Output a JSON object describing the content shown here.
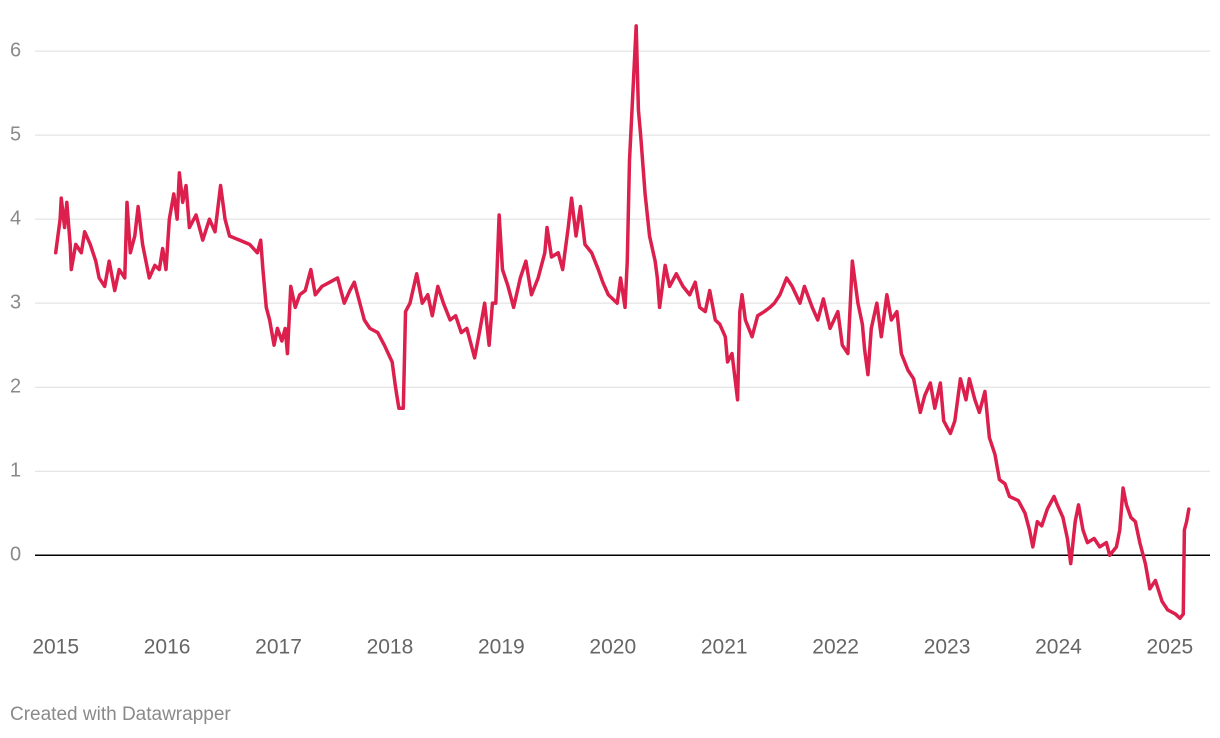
{
  "chart_data": {
    "type": "line",
    "xlim": [
      2014.59,
      2025.36
    ],
    "ylim": [
      -0.83,
      6.37
    ],
    "xticks": [
      2015,
      2016,
      2017,
      2018,
      2019,
      2020,
      2021,
      2022,
      2023,
      2024,
      2025
    ],
    "yticks": [
      0,
      1,
      2,
      3,
      4,
      5,
      6
    ],
    "grid": true,
    "series": [
      {
        "color": "#dc1f4c",
        "x": [
          2015.0,
          2015.04,
          2015.05,
          2015.08,
          2015.1,
          2015.13,
          2015.14,
          2015.18,
          2015.23,
          2015.26,
          2015.31,
          2015.36,
          2015.39,
          2015.44,
          2015.48,
          2015.53,
          2015.57,
          2015.62,
          2015.64,
          2015.67,
          2015.71,
          2015.74,
          2015.78,
          2015.84,
          2015.89,
          2015.93,
          2015.96,
          2015.99,
          2016.02,
          2016.06,
          2016.09,
          2016.11,
          2016.14,
          2016.17,
          2016.2,
          2016.26,
          2016.32,
          2016.38,
          2016.43,
          2016.48,
          2016.52,
          2016.56,
          2016.65,
          2016.74,
          2016.81,
          2016.84,
          2016.86,
          2016.89,
          2016.92,
          2016.96,
          2016.99,
          2017.03,
          2017.06,
          2017.08,
          2017.11,
          2017.15,
          2017.19,
          2017.24,
          2017.29,
          2017.33,
          2017.39,
          2017.46,
          2017.53,
          2017.59,
          2017.64,
          2017.68,
          2017.71,
          2017.77,
          2017.82,
          2017.89,
          2017.95,
          2018.02,
          2018.05,
          2018.08,
          2018.12,
          2018.14,
          2018.18,
          2018.24,
          2018.29,
          2018.34,
          2018.38,
          2018.43,
          2018.48,
          2018.54,
          2018.59,
          2018.64,
          2018.69,
          2018.73,
          2018.76,
          2018.81,
          2018.85,
          2018.89,
          2018.92,
          2018.95,
          2018.98,
          2019.01,
          2019.06,
          2019.11,
          2019.17,
          2019.22,
          2019.27,
          2019.33,
          2019.39,
          2019.41,
          2019.45,
          2019.51,
          2019.55,
          2019.6,
          2019.63,
          2019.67,
          2019.71,
          2019.75,
          2019.81,
          2019.87,
          2019.91,
          2019.96,
          2020.0,
          2020.04,
          2020.07,
          2020.11,
          2020.13,
          2020.15,
          2020.18,
          2020.21,
          2020.23,
          2020.25,
          2020.29,
          2020.33,
          2020.38,
          2020.4,
          2020.42,
          2020.47,
          2020.51,
          2020.57,
          2020.63,
          2020.69,
          2020.74,
          2020.78,
          2020.83,
          2020.87,
          2020.92,
          2020.96,
          2021.01,
          2021.03,
          2021.07,
          2021.12,
          2021.14,
          2021.16,
          2021.19,
          2021.25,
          2021.3,
          2021.36,
          2021.41,
          2021.45,
          2021.5,
          2021.56,
          2021.61,
          2021.68,
          2021.72,
          2021.79,
          2021.84,
          2021.89,
          2021.95,
          2022.02,
          2022.06,
          2022.11,
          2022.15,
          2022.2,
          2022.24,
          2022.26,
          2022.29,
          2022.32,
          2022.37,
          2022.41,
          2022.46,
          2022.5,
          2022.55,
          2022.59,
          2022.65,
          2022.7,
          2022.76,
          2022.8,
          2022.85,
          2022.89,
          2022.94,
          2022.97,
          2023.03,
          2023.07,
          2023.12,
          2023.17,
          2023.2,
          2023.25,
          2023.29,
          2023.34,
          2023.38,
          2023.43,
          2023.47,
          2023.52,
          2023.56,
          2023.64,
          2023.7,
          2023.74,
          2023.77,
          2023.81,
          2023.85,
          2023.9,
          2023.96,
          2023.99,
          2024.04,
          2024.08,
          2024.11,
          2024.15,
          2024.18,
          2024.22,
          2024.26,
          2024.32,
          2024.37,
          2024.43,
          2024.46,
          2024.52,
          2024.55,
          2024.58,
          2024.61,
          2024.65,
          2024.69,
          2024.73,
          2024.78,
          2024.82,
          2024.87,
          2024.93,
          2024.98,
          2025.05,
          2025.09,
          2025.12,
          2025.13,
          2025.15,
          2025.17
        ],
        "values": [
          3.6,
          4.0,
          4.25,
          3.9,
          4.2,
          3.7,
          3.4,
          3.7,
          3.6,
          3.85,
          3.7,
          3.5,
          3.3,
          3.2,
          3.5,
          3.15,
          3.4,
          3.3,
          4.2,
          3.6,
          3.8,
          4.15,
          3.7,
          3.3,
          3.45,
          3.4,
          3.65,
          3.4,
          4.0,
          4.3,
          4.0,
          4.55,
          4.2,
          4.4,
          3.9,
          4.05,
          3.75,
          4.0,
          3.85,
          4.4,
          4.0,
          3.8,
          3.75,
          3.7,
          3.6,
          3.75,
          3.4,
          2.95,
          2.8,
          2.5,
          2.7,
          2.55,
          2.7,
          2.4,
          3.2,
          2.95,
          3.1,
          3.15,
          3.4,
          3.1,
          3.2,
          3.25,
          3.3,
          3.0,
          3.15,
          3.25,
          3.1,
          2.8,
          2.7,
          2.65,
          2.5,
          2.3,
          2.0,
          1.75,
          1.75,
          2.9,
          3.0,
          3.35,
          3.0,
          3.1,
          2.85,
          3.2,
          3.0,
          2.8,
          2.85,
          2.65,
          2.7,
          2.5,
          2.35,
          2.7,
          3.0,
          2.5,
          3.0,
          3.0,
          4.05,
          3.4,
          3.2,
          2.95,
          3.3,
          3.5,
          3.1,
          3.3,
          3.6,
          3.9,
          3.55,
          3.6,
          3.4,
          3.9,
          4.25,
          3.8,
          4.15,
          3.7,
          3.6,
          3.4,
          3.25,
          3.1,
          3.05,
          3.0,
          3.3,
          2.95,
          3.5,
          4.7,
          5.5,
          6.3,
          5.3,
          5.0,
          4.3,
          3.8,
          3.5,
          3.3,
          2.95,
          3.45,
          3.2,
          3.35,
          3.2,
          3.1,
          3.25,
          2.95,
          2.9,
          3.15,
          2.8,
          2.75,
          2.6,
          2.3,
          2.4,
          1.85,
          2.9,
          3.1,
          2.8,
          2.6,
          2.85,
          2.9,
          2.95,
          3.0,
          3.1,
          3.3,
          3.2,
          3.0,
          3.2,
          2.95,
          2.8,
          3.05,
          2.7,
          2.9,
          2.5,
          2.4,
          3.5,
          3.0,
          2.75,
          2.45,
          2.15,
          2.7,
          3.0,
          2.6,
          3.1,
          2.8,
          2.9,
          2.4,
          2.2,
          2.1,
          1.7,
          1.9,
          2.05,
          1.75,
          2.05,
          1.6,
          1.45,
          1.6,
          2.1,
          1.85,
          2.1,
          1.85,
          1.7,
          1.95,
          1.4,
          1.2,
          0.9,
          0.85,
          0.7,
          0.65,
          0.5,
          0.3,
          0.1,
          0.4,
          0.35,
          0.55,
          0.7,
          0.6,
          0.45,
          0.2,
          -0.1,
          0.4,
          0.6,
          0.3,
          0.15,
          0.2,
          0.1,
          0.15,
          0.0,
          0.1,
          0.3,
          0.8,
          0.6,
          0.45,
          0.4,
          0.15,
          -0.1,
          -0.4,
          -0.3,
          -0.55,
          -0.65,
          -0.7,
          -0.75,
          -0.7,
          0.3,
          0.4,
          0.55
        ]
      }
    ]
  },
  "footer": "Created with Datawrapper"
}
